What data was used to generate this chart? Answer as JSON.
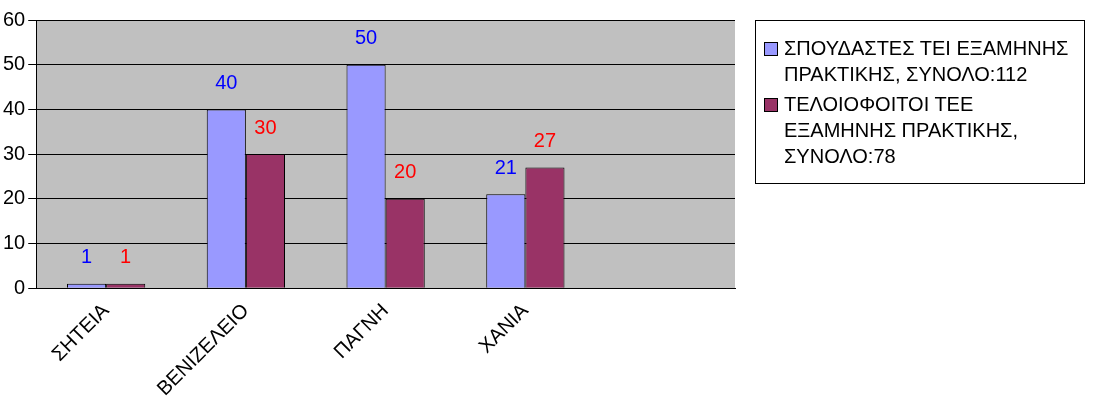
{
  "chart_data": {
    "type": "bar",
    "categories": [
      "ΣΗΤΕΙΑ",
      "ΒΕΝΙΖΕΛΕΙΟ",
      "ΠΑΓΝΗ",
      "ΧΑΝΙΑ",
      null
    ],
    "series": [
      {
        "name": "ΣΠΟΥΔΑΣΤΕΣ ΤΕΙ ΕΞΑΜΗΝΗΣ ΠΡΑΚΤΙΚΗΣ, ΣΥΝΟΛΟ:112",
        "color": "#9999ff",
        "values": [
          1,
          40,
          50,
          21,
          null
        ]
      },
      {
        "name": "ΤΕΛΟΙΟΦΟΙΤΟΙ ΤΕΕ ΕΞΑΜΗΝΗΣ ΠΡΑΚΤΙΚΗΣ, ΣΥΝΟΛΟ:78",
        "color": "#993366",
        "values": [
          1,
          30,
          20,
          27,
          null
        ]
      }
    ],
    "ylim": [
      0,
      60
    ],
    "yticks": [
      0,
      10,
      20,
      30,
      40,
      50,
      60
    ],
    "grid": "y",
    "legend": "right",
    "data_labels": true
  }
}
